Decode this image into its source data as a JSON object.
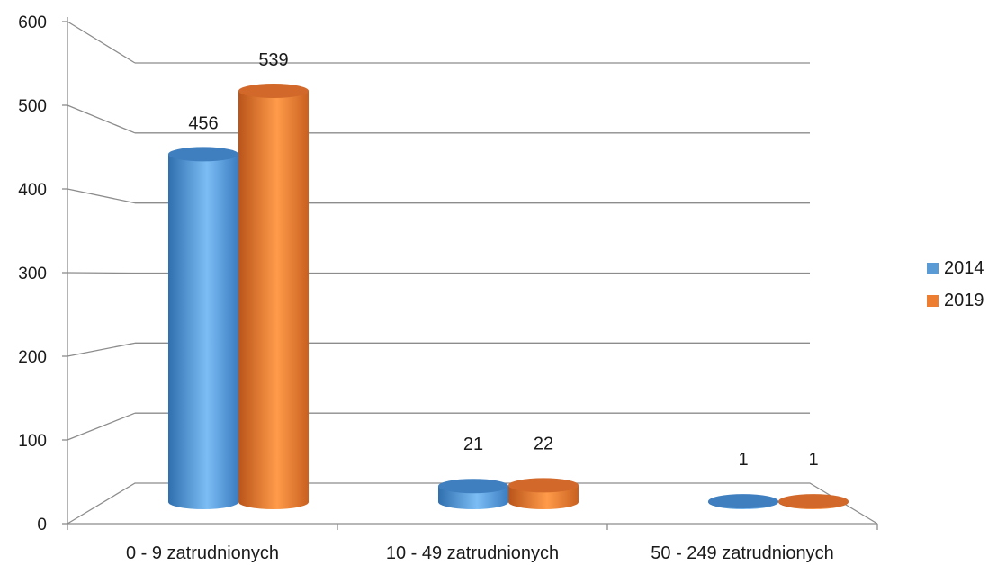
{
  "chart_data": {
    "type": "bar",
    "categories": [
      "0 - 9 zatrudnionych",
      "10 - 49 zatrudnionych",
      "50 - 249 zatrudnionych"
    ],
    "series": [
      {
        "name": "2014",
        "values": [
          456,
          21,
          1
        ],
        "color": "#5b9bd5"
      },
      {
        "name": "2019",
        "values": [
          539,
          22,
          1
        ],
        "color": "#ed7d31"
      }
    ],
    "data_labels": [
      [
        "456",
        "21",
        "1"
      ],
      [
        "539",
        "22",
        "1"
      ]
    ],
    "yticks": [
      "0",
      "100",
      "200",
      "300",
      "400",
      "500",
      "600"
    ],
    "ylim": [
      0,
      600
    ],
    "grid": true,
    "legend_position": "right",
    "style": "3d-cylinder"
  }
}
